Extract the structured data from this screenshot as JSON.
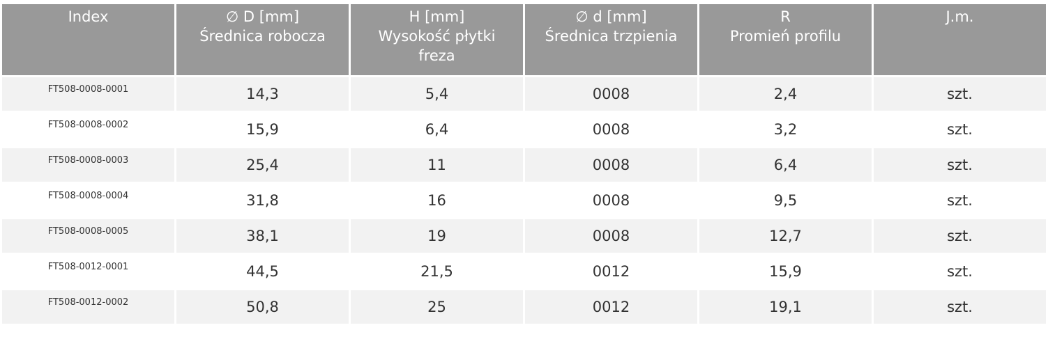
{
  "table": {
    "header": [
      [
        "Index"
      ],
      [
        "∅ D [mm]",
        "Średnica robocza"
      ],
      [
        "H [mm]",
        "Wysokość płytki freza"
      ],
      [
        "∅ d [mm]",
        "Średnica trzpienia"
      ],
      [
        "R",
        "Promień profilu"
      ],
      [
        "J.m."
      ]
    ],
    "rows": [
      [
        "FT508-0008-0001",
        "14,3",
        "5,4",
        "0008",
        "2,4",
        "szt."
      ],
      [
        "FT508-0008-0002",
        "15,9",
        "6,4",
        "0008",
        "3,2",
        "szt."
      ],
      [
        "FT508-0008-0003",
        "25,4",
        "11",
        "0008",
        "6,4",
        "szt."
      ],
      [
        "FT508-0008-0004",
        "31,8",
        "16",
        "0008",
        "9,5",
        "szt."
      ],
      [
        "FT508-0008-0005",
        "38,1",
        "19",
        "0008",
        "12,7",
        "szt."
      ],
      [
        "FT508-0012-0001",
        "44,5",
        "21,5",
        "0012",
        "15,9",
        "szt."
      ],
      [
        "FT508-0012-0002",
        "50,8",
        "25",
        "0012",
        "19,1",
        "szt."
      ]
    ]
  }
}
